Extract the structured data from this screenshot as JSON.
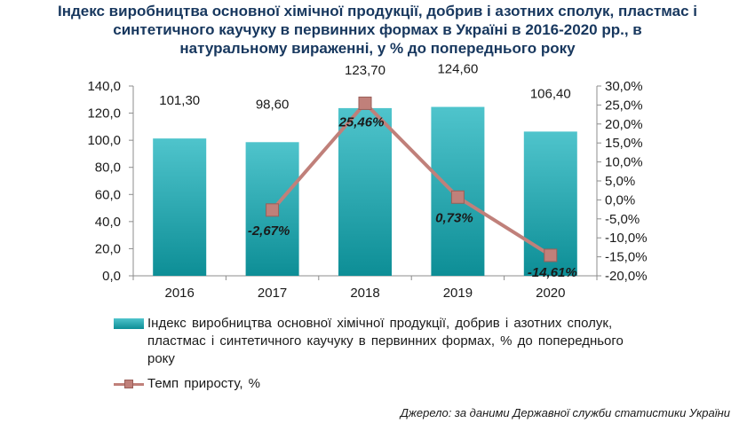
{
  "chart_data": {
    "type": "bar",
    "title": "Індекс виробництва основної хімічної продукції, добрив і азотних сполук, пластмас і\nсинтетичного каучуку в первинних формах в Україні в 2016-2020 рр., в\nнатуральному вираженні, у % до попереднього року",
    "categories": [
      "2016",
      "2017",
      "2018",
      "2019",
      "2020"
    ],
    "series": [
      {
        "name": "Індекс виробництва  основної  хімічної  продукції,  добрив  і азотних сполук, пластмас  і синтетичного  каучуку в первинних  формах,  % до попереднього  року",
        "type": "bar",
        "axis": "left",
        "values": [
          101.3,
          98.6,
          123.7,
          124.6,
          106.4
        ],
        "labels": [
          "101,30",
          "98,60",
          "123,70",
          "124,60",
          "106,40"
        ],
        "color": "#18a3ab"
      },
      {
        "name": "Темп  приросту,  %",
        "type": "line",
        "axis": "right",
        "x": [
          "2017",
          "2018",
          "2019",
          "2020"
        ],
        "values": [
          -2.67,
          25.46,
          0.73,
          -14.61
        ],
        "labels": [
          "-2,67%",
          "25,46%",
          "0,73%",
          "-14,61%"
        ],
        "color": "#c0807a"
      }
    ],
    "y_left": {
      "lim": [
        0,
        140
      ],
      "ticks": [
        0,
        20,
        40,
        60,
        80,
        100,
        120,
        140
      ],
      "tick_labels": [
        "0,0",
        "20,0",
        "40,0",
        "60,0",
        "80,0",
        "100,0",
        "120,0",
        "140,0"
      ]
    },
    "y_right": {
      "lim": [
        -20,
        30
      ],
      "ticks": [
        -20,
        -15,
        -10,
        -5,
        0,
        5,
        10,
        15,
        20,
        25,
        30
      ],
      "tick_labels": [
        "-20,0%",
        "-15,0%",
        "-10,0%",
        "-5,0%",
        "0,0%",
        "5,0%",
        "10,0%",
        "15,0%",
        "20,0%",
        "25,0%",
        "30,0%"
      ]
    },
    "xlabel": "",
    "ylabel": "",
    "grid": false,
    "legend_position": "bottom"
  },
  "source_note": "Джерело: за даними Державної служби статистики України"
}
